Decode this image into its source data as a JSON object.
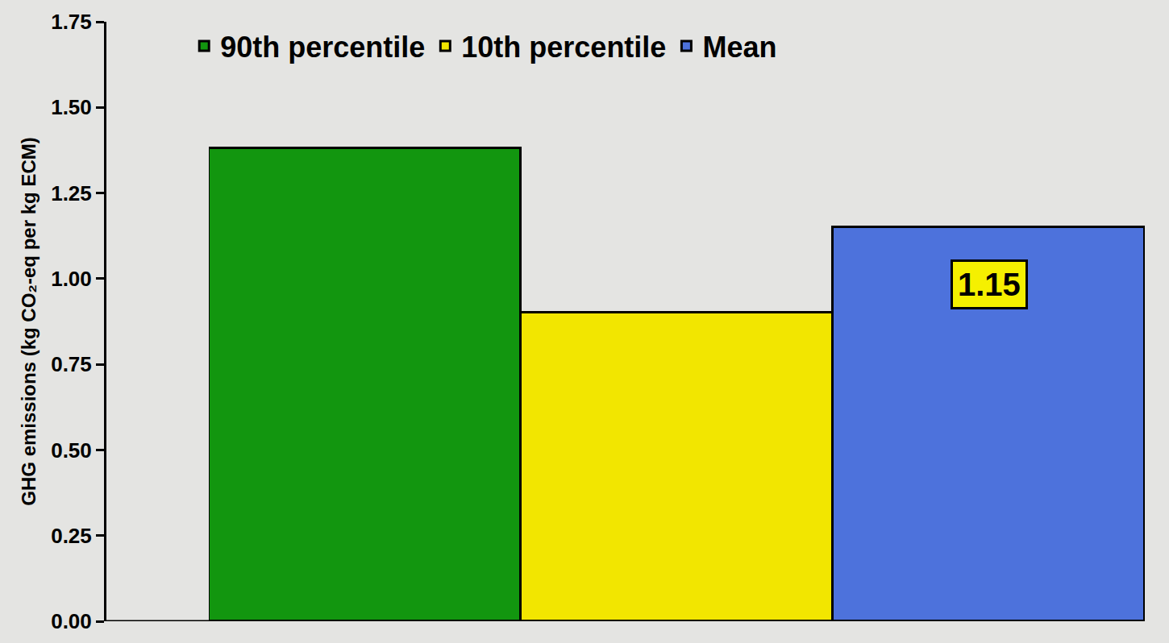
{
  "chart_data": {
    "type": "bar",
    "y_label": "GHG emissions (kg CO₂-eq per kg ECM)",
    "categories": [
      null
    ],
    "series": [
      {
        "name": "90th percentile",
        "color": "#12960f",
        "values": [
          1.38
        ]
      },
      {
        "name": "10th percentile",
        "color": "#f2e600",
        "values": [
          0.9
        ]
      },
      {
        "name": "Mean",
        "color": "#4d72dc",
        "values": [
          1.15
        ],
        "data_labels": true
      }
    ],
    "ylim": [
      0,
      1.75
    ],
    "yticks": [
      {
        "value": 0,
        "label": "0.00"
      },
      {
        "value": 0.25,
        "label": "0.25"
      },
      {
        "value": 0.5,
        "label": "0.50"
      },
      {
        "value": 0.75,
        "label": "0.75"
      },
      {
        "value": 1,
        "label": "1.00"
      },
      {
        "value": 1.25,
        "label": "1.25"
      },
      {
        "value": 1.5,
        "label": "1.50"
      },
      {
        "value": 1.75,
        "label": "1.75"
      }
    ],
    "grid": false,
    "legend": "top",
    "tick_labels": "y"
  }
}
